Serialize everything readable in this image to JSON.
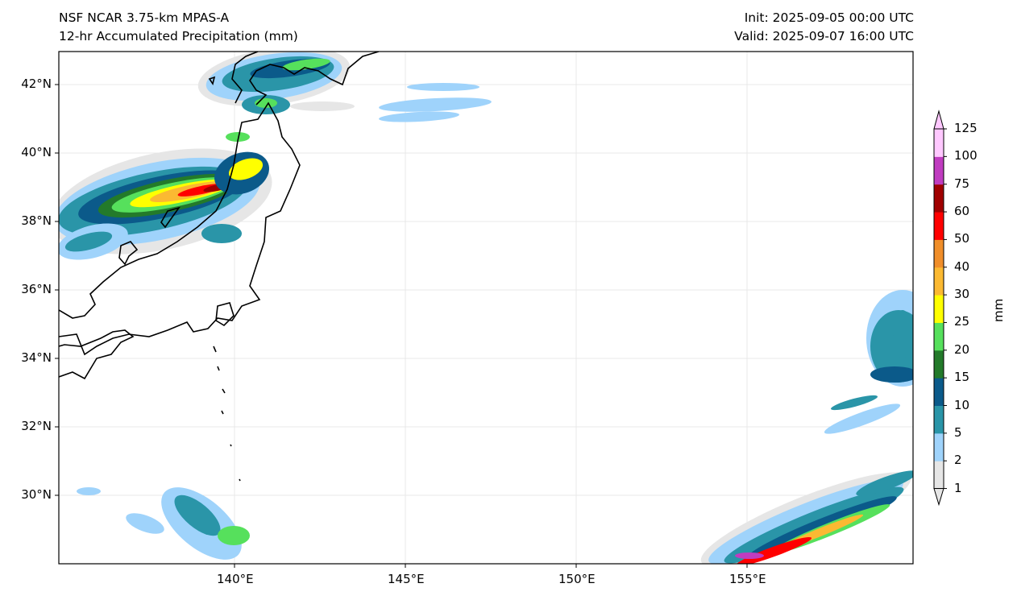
{
  "header": {
    "model": "NSF NCAR 3.75-km MPAS-A",
    "field": "12-hr Accumulated Precipitation (mm)",
    "init": "Init: 2025-09-05 00:00 UTC",
    "valid": "Valid: 2025-09-07 16:00 UTC"
  },
  "map": {
    "lat_labels": [
      "42°N",
      "40°N",
      "38°N",
      "36°N",
      "34°N",
      "32°N",
      "30°N"
    ],
    "lon_labels": [
      "140°E",
      "145°E",
      "150°E",
      "155°E"
    ],
    "extent": {
      "lon_min": 134.9,
      "lon_max": 160.0,
      "lat_min": 28.0,
      "lat_max": 43.0
    }
  },
  "colorbar": {
    "label": "mm",
    "ticks": [
      "1",
      "2",
      "5",
      "10",
      "15",
      "20",
      "25",
      "30",
      "40",
      "50",
      "60",
      "75",
      "100",
      "125"
    ],
    "colors": [
      "#e6e6e6",
      "#9fd3fb",
      "#2a95a8",
      "#0b5a8a",
      "#237a2a",
      "#56e05c",
      "#ffff00",
      "#fbb932",
      "#f08e2a",
      "#ff0000",
      "#a00000",
      "#c03cc0",
      "#ffc8ff"
    ]
  }
}
